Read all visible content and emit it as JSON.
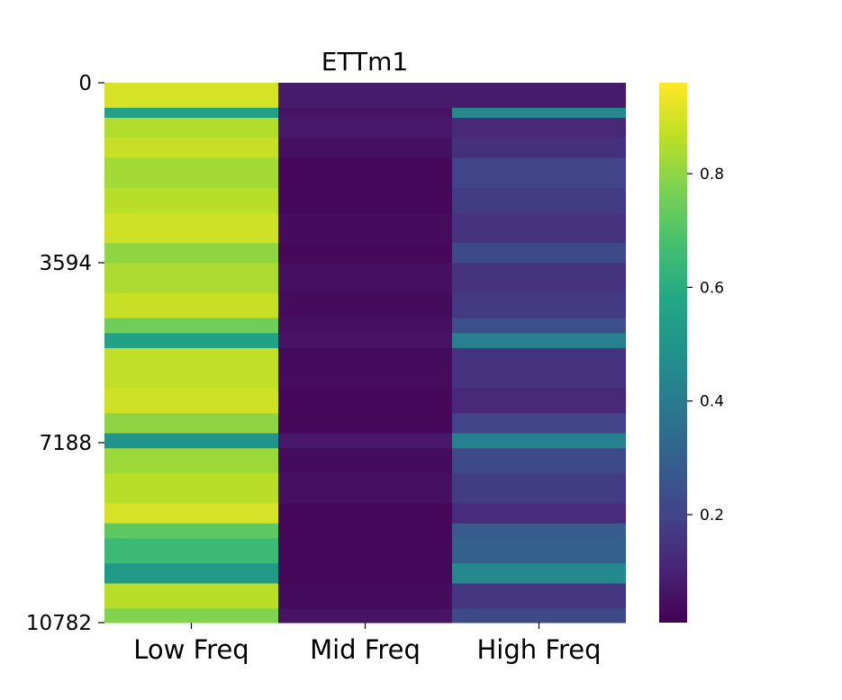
{
  "chart_data": {
    "type": "heatmap",
    "title": "ETTm1",
    "xlabel": "",
    "ylabel": "",
    "columns": [
      "Low Freq",
      "Mid Freq",
      "High Freq"
    ],
    "y_ticks": [
      0,
      3594,
      7188,
      10782
    ],
    "y_range": [
      0,
      10782
    ],
    "colormap": "viridis",
    "color_range": [
      0.01,
      0.96
    ],
    "colorbar_ticks": [
      0.2,
      0.4,
      0.6,
      0.8
    ],
    "colorbar_tick_labels": [
      "0.2",
      "0.4",
      "0.6",
      "0.8"
    ],
    "band_rows": [
      0,
      500,
      700,
      1100,
      1500,
      2100,
      2600,
      3200,
      3600,
      4200,
      4700,
      5000,
      5300,
      6100,
      6600,
      7000,
      7300,
      7800,
      8400,
      8800,
      9100,
      9600,
      10000,
      10500
    ],
    "band_values": {
      "Low Freq": [
        0.9,
        0.55,
        0.85,
        0.88,
        0.83,
        0.86,
        0.89,
        0.8,
        0.84,
        0.88,
        0.75,
        0.55,
        0.87,
        0.89,
        0.8,
        0.5,
        0.82,
        0.86,
        0.9,
        0.72,
        0.65,
        0.52,
        0.86,
        0.78
      ],
      "Mid Freq": [
        0.08,
        0.06,
        0.07,
        0.05,
        0.03,
        0.03,
        0.04,
        0.03,
        0.05,
        0.04,
        0.05,
        0.06,
        0.04,
        0.03,
        0.03,
        0.07,
        0.04,
        0.05,
        0.03,
        0.03,
        0.03,
        0.03,
        0.04,
        0.06
      ],
      "High Freq": [
        0.08,
        0.45,
        0.12,
        0.14,
        0.2,
        0.18,
        0.15,
        0.22,
        0.15,
        0.17,
        0.24,
        0.42,
        0.15,
        0.12,
        0.2,
        0.42,
        0.22,
        0.18,
        0.13,
        0.28,
        0.3,
        0.45,
        0.16,
        0.22
      ]
    }
  }
}
